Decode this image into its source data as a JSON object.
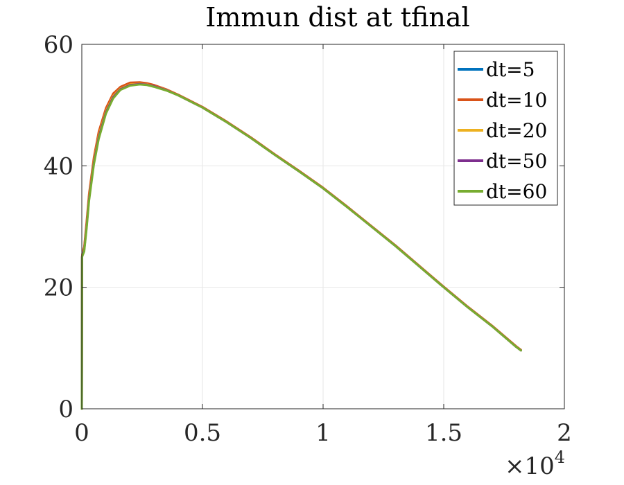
{
  "chart_data": {
    "type": "line",
    "title": "Immun dist at tfinal",
    "xlabel": "",
    "ylabel": "",
    "xlim": [
      0,
      2
    ],
    "ylim": [
      0,
      60
    ],
    "x_multiplier_label": "×10",
    "x_multiplier_exponent": "4",
    "x_ticks": [
      0,
      0.5,
      1,
      1.5,
      2
    ],
    "x_tick_labels": [
      "0",
      "0.5",
      "1",
      "1.5",
      "2"
    ],
    "y_ticks": [
      0,
      20,
      40,
      60
    ],
    "y_tick_labels": [
      "0",
      "20",
      "40",
      "60"
    ],
    "grid": true,
    "legend_position": "top-right",
    "series": [
      {
        "name": "dt=5",
        "color": "#0072BD",
        "x": [
          0,
          0.001,
          0.002,
          0.005,
          0.01,
          0.02,
          0.03,
          0.05,
          0.07,
          0.1,
          0.13,
          0.16,
          0.2,
          0.24,
          0.27,
          0.3,
          0.35,
          0.4,
          0.5,
          0.6,
          0.7,
          0.8,
          0.9,
          1.0,
          1.1,
          1.2,
          1.3,
          1.4,
          1.5,
          1.6,
          1.7,
          1.8,
          1.82
        ],
        "y": [
          0,
          25.0,
          25.3,
          25.8,
          26.4,
          30.5,
          35.0,
          41.0,
          45.2,
          49.2,
          51.6,
          52.8,
          53.5,
          53.6,
          53.5,
          53.2,
          52.5,
          51.6,
          49.6,
          47.2,
          44.6,
          41.8,
          39.1,
          36.3,
          33.2,
          30.0,
          26.8,
          23.4,
          20.0,
          16.7,
          13.6,
          10.2,
          9.6
        ]
      },
      {
        "name": "dt=10",
        "color": "#D95319",
        "x": [
          0,
          0.001,
          0.002,
          0.005,
          0.01,
          0.02,
          0.03,
          0.05,
          0.07,
          0.1,
          0.13,
          0.16,
          0.2,
          0.24,
          0.27,
          0.3,
          0.35,
          0.4,
          0.5,
          0.6,
          0.7,
          0.8,
          0.9,
          1.0,
          1.1,
          1.2,
          1.3,
          1.4,
          1.5,
          1.6,
          1.7,
          1.8,
          1.82
        ],
        "y": [
          0,
          25.1,
          25.5,
          26.0,
          26.7,
          30.9,
          35.4,
          41.4,
          45.6,
          49.5,
          51.9,
          53.0,
          53.7,
          53.75,
          53.6,
          53.3,
          52.6,
          51.7,
          49.7,
          47.3,
          44.7,
          41.9,
          39.2,
          36.4,
          33.3,
          30.1,
          26.9,
          23.5,
          20.1,
          16.8,
          13.7,
          10.3,
          9.7
        ]
      },
      {
        "name": "dt=20",
        "color": "#EDB120",
        "x": [
          0,
          0.001,
          0.002,
          0.005,
          0.01,
          0.02,
          0.03,
          0.05,
          0.07,
          0.1,
          0.13,
          0.16,
          0.2,
          0.24,
          0.27,
          0.3,
          0.35,
          0.4,
          0.5,
          0.6,
          0.7,
          0.8,
          0.9,
          1.0,
          1.1,
          1.2,
          1.3,
          1.4,
          1.5,
          1.6,
          1.7,
          1.8,
          1.82
        ],
        "y": [
          0,
          25.0,
          25.3,
          25.8,
          26.3,
          30.3,
          34.8,
          40.8,
          45.0,
          49.0,
          51.5,
          52.7,
          53.4,
          53.5,
          53.4,
          53.1,
          52.5,
          51.6,
          49.6,
          47.2,
          44.6,
          41.8,
          39.1,
          36.3,
          33.2,
          30.0,
          26.8,
          23.4,
          20.0,
          16.7,
          13.6,
          10.2,
          9.6
        ]
      },
      {
        "name": "dt=50",
        "color": "#7E2F8E",
        "x": [
          0,
          0.001,
          0.002,
          0.005,
          0.01,
          0.02,
          0.03,
          0.05,
          0.07,
          0.1,
          0.13,
          0.16,
          0.2,
          0.24,
          0.27,
          0.3,
          0.35,
          0.4,
          0.5,
          0.6,
          0.7,
          0.8,
          0.9,
          1.0,
          1.1,
          1.2,
          1.3,
          1.4,
          1.5,
          1.6,
          1.7,
          1.8,
          1.82
        ],
        "y": [
          0,
          24.9,
          25.2,
          25.6,
          26.1,
          30.0,
          34.5,
          40.5,
          44.7,
          48.8,
          51.3,
          52.6,
          53.3,
          53.45,
          53.35,
          53.1,
          52.45,
          51.6,
          49.6,
          47.2,
          44.6,
          41.8,
          39.1,
          36.3,
          33.2,
          30.0,
          26.8,
          23.4,
          20.0,
          16.7,
          13.6,
          10.2,
          9.6
        ]
      },
      {
        "name": "dt=60",
        "color": "#77AC30",
        "x": [
          0,
          0.001,
          0.002,
          0.005,
          0.01,
          0.02,
          0.03,
          0.05,
          0.07,
          0.1,
          0.13,
          0.16,
          0.2,
          0.24,
          0.27,
          0.3,
          0.35,
          0.4,
          0.5,
          0.6,
          0.7,
          0.8,
          0.9,
          1.0,
          1.1,
          1.2,
          1.3,
          1.4,
          1.5,
          1.6,
          1.7,
          1.8,
          1.82
        ],
        "y": [
          0,
          24.8,
          25.1,
          25.4,
          25.9,
          29.7,
          34.2,
          40.2,
          44.4,
          48.6,
          51.1,
          52.5,
          53.2,
          53.4,
          53.3,
          53.0,
          52.4,
          51.6,
          49.6,
          47.2,
          44.6,
          41.8,
          39.1,
          36.3,
          33.2,
          30.0,
          26.8,
          23.4,
          20.0,
          16.7,
          13.6,
          10.2,
          9.6
        ]
      }
    ]
  }
}
